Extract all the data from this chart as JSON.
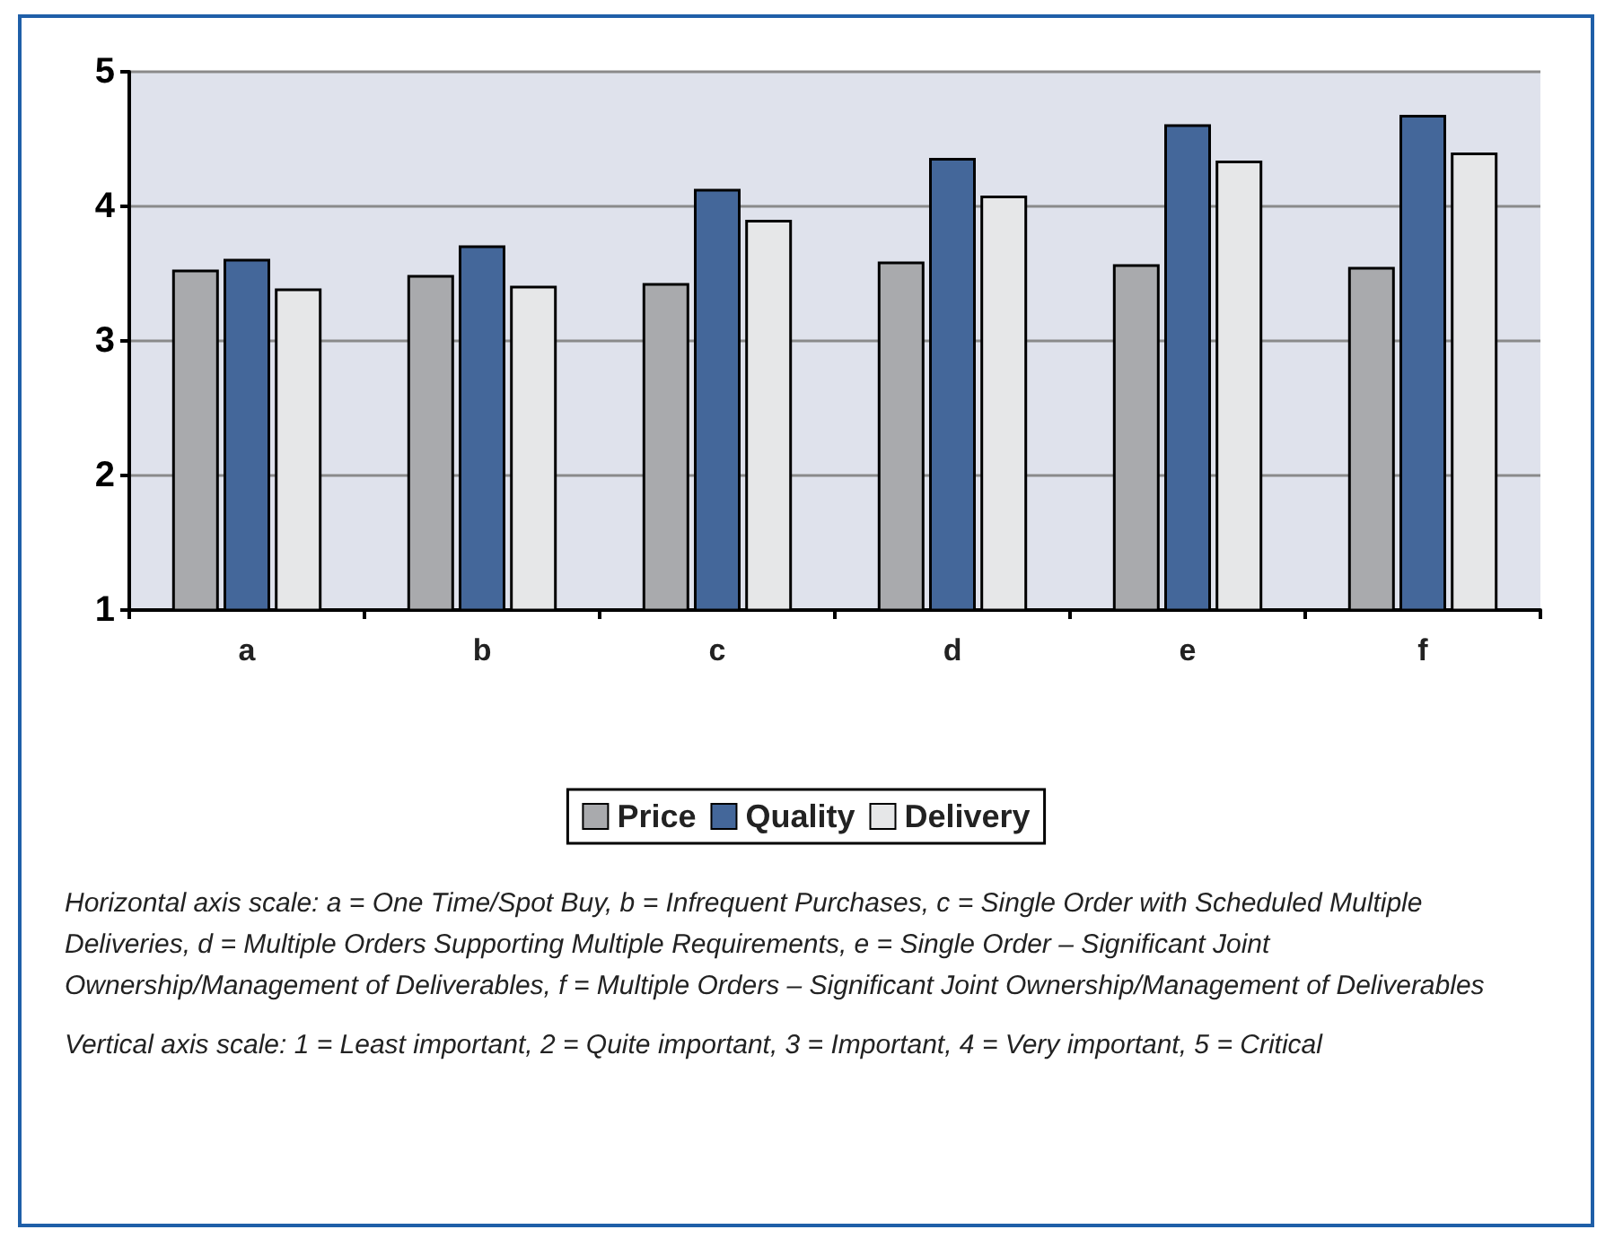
{
  "chart_data": {
    "type": "bar",
    "categories": [
      "a",
      "b",
      "c",
      "d",
      "e",
      "f"
    ],
    "series": [
      {
        "name": "Price",
        "color": "#a9aaad",
        "values": [
          3.53,
          3.49,
          3.43,
          3.59,
          3.57,
          3.55
        ]
      },
      {
        "name": "Quality",
        "color": "#44679a",
        "values": [
          3.61,
          3.71,
          4.13,
          4.36,
          4.61,
          4.68
        ]
      },
      {
        "name": "Delivery",
        "color": "#e6e7e8",
        "values": [
          3.39,
          3.41,
          3.9,
          4.08,
          4.34,
          4.4
        ]
      }
    ],
    "ylim": [
      1,
      5
    ],
    "yticks": [
      1,
      2,
      3,
      4,
      5
    ],
    "grid": "y",
    "legend": "bottom",
    "annotations": [
      "Horizontal axis scale: a = One Time/Spot Buy, b = Infrequent Purchases, c = Single Order with Scheduled Multiple Deliveries, d = Multiple Orders Supporting Multiple Requirements, e = Single Order – Significant Joint Ownership/Management of Deliverables, f = Multiple Orders – Significant Joint Ownership/Management of Deliverables",
      "Vertical axis scale: 1 = Least important, 2 = Quite important, 3 = Important, 4 = Very important, 5 = Critical"
    ]
  }
}
